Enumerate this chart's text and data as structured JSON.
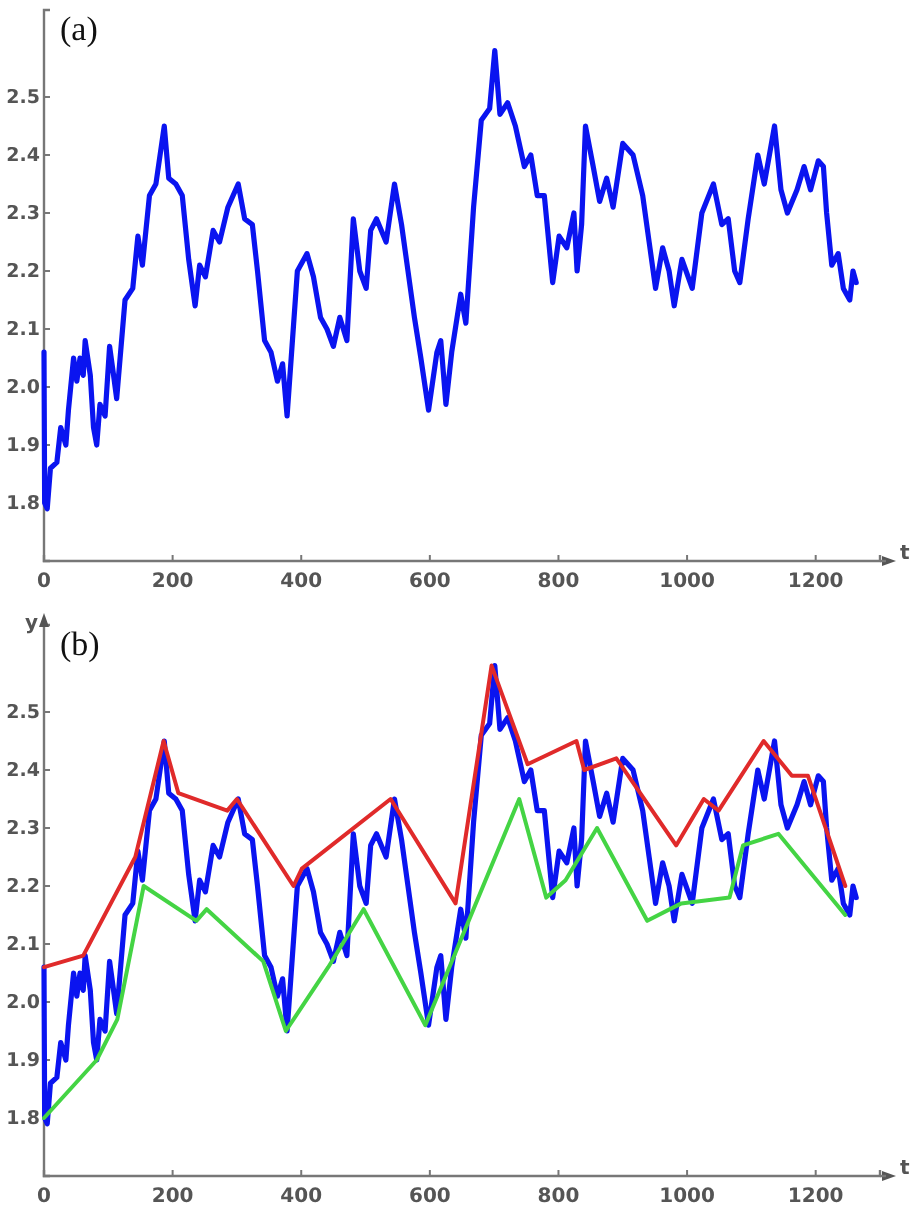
{
  "chart_data": [
    {
      "type": "line",
      "title": "(a)",
      "xlabel": "t",
      "xlim": [
        0,
        1300
      ],
      "ylim": [
        1.7,
        2.65
      ],
      "xticks": [
        0,
        200,
        400,
        600,
        800,
        1000,
        1200
      ],
      "yticks": [
        1.8,
        1.9,
        {
          "value": 2.0,
          "label": "2.0"
        },
        2.1,
        2.2,
        2.3,
        2.4,
        2.5
      ],
      "grid": false,
      "x": [
        0,
        1,
        5,
        10,
        20,
        26,
        34,
        38,
        46,
        51,
        56,
        61,
        64,
        72,
        77,
        82,
        87,
        95,
        102,
        107,
        113,
        126,
        138,
        146,
        153,
        164,
        174,
        187,
        194,
        205,
        215,
        225,
        235,
        242,
        251,
        263,
        273,
        286,
        302,
        312,
        324,
        332,
        343,
        353,
        363,
        371,
        378,
        394,
        409,
        419,
        430,
        440,
        450,
        460,
        471,
        481,
        491,
        501,
        508,
        517,
        532,
        545,
        556,
        566,
        576,
        586,
        598,
        611,
        617,
        625,
        634,
        648,
        656,
        668,
        680,
        693,
        701,
        709,
        721,
        733,
        747,
        757,
        767,
        778,
        791,
        801,
        813,
        824,
        829,
        836,
        842,
        854,
        864,
        875,
        885,
        900,
        916,
        931,
        941,
        951,
        962,
        972,
        980,
        992,
        1008,
        1023,
        1041,
        1054,
        1064,
        1074,
        1082,
        1095,
        1110,
        1120,
        1136,
        1146,
        1156,
        1171,
        1182,
        1192,
        1204,
        1212,
        1217,
        1225,
        1235,
        1243,
        1253,
        1258,
        1263
      ],
      "series": [
        {
          "color": "#0a14f0",
          "values": [
            2.06,
            1.8,
            1.79,
            1.86,
            1.87,
            1.93,
            1.9,
            1.96,
            2.05,
            2.01,
            2.05,
            2.02,
            2.08,
            2.02,
            1.93,
            1.9,
            1.97,
            1.95,
            2.07,
            2.03,
            1.98,
            2.15,
            2.17,
            2.26,
            2.21,
            2.33,
            2.35,
            2.45,
            2.36,
            2.35,
            2.33,
            2.22,
            2.14,
            2.21,
            2.19,
            2.27,
            2.25,
            2.31,
            2.35,
            2.29,
            2.28,
            2.2,
            2.08,
            2.06,
            2.01,
            2.04,
            1.95,
            2.2,
            2.23,
            2.19,
            2.12,
            2.1,
            2.07,
            2.12,
            2.08,
            2.29,
            2.2,
            2.17,
            2.27,
            2.29,
            2.25,
            2.35,
            2.28,
            2.2,
            2.12,
            2.05,
            1.96,
            2.06,
            2.08,
            1.97,
            2.06,
            2.16,
            2.11,
            2.31,
            2.46,
            2.48,
            2.58,
            2.47,
            2.49,
            2.45,
            2.38,
            2.4,
            2.33,
            2.33,
            2.18,
            2.26,
            2.24,
            2.3,
            2.2,
            2.28,
            2.45,
            2.38,
            2.32,
            2.36,
            2.31,
            2.42,
            2.4,
            2.33,
            2.25,
            2.17,
            2.24,
            2.2,
            2.14,
            2.22,
            2.17,
            2.3,
            2.35,
            2.28,
            2.29,
            2.2,
            2.18,
            2.29,
            2.4,
            2.35,
            2.45,
            2.34,
            2.3,
            2.34,
            2.38,
            2.34,
            2.39,
            2.38,
            2.3,
            2.21,
            2.23,
            2.17,
            2.15,
            2.2,
            2.18
          ]
        }
      ]
    },
    {
      "type": "line",
      "title": "(b)",
      "xlabel": "t",
      "ylabel": "y",
      "xlim": [
        0,
        1300
      ],
      "ylim": [
        1.7,
        2.65
      ],
      "xticks": [
        0,
        200,
        400,
        600,
        800,
        1000,
        1200
      ],
      "yticks": [
        1.8,
        1.9,
        {
          "value": 2.0,
          "label": "2.0"
        },
        2.1,
        2.2,
        2.3,
        2.4,
        2.5
      ],
      "grid": false,
      "x": [
        0,
        1,
        5,
        10,
        20,
        26,
        34,
        38,
        46,
        51,
        56,
        61,
        64,
        72,
        77,
        82,
        87,
        95,
        102,
        107,
        113,
        126,
        138,
        146,
        153,
        164,
        174,
        187,
        194,
        205,
        215,
        225,
        235,
        242,
        251,
        263,
        273,
        286,
        302,
        312,
        324,
        332,
        343,
        353,
        363,
        371,
        378,
        394,
        409,
        419,
        430,
        440,
        450,
        460,
        471,
        481,
        491,
        501,
        508,
        517,
        532,
        545,
        556,
        566,
        576,
        586,
        598,
        611,
        617,
        625,
        634,
        648,
        656,
        668,
        680,
        693,
        701,
        709,
        721,
        733,
        747,
        757,
        767,
        778,
        791,
        801,
        813,
        824,
        829,
        836,
        842,
        854,
        864,
        875,
        885,
        900,
        916,
        931,
        941,
        951,
        962,
        972,
        980,
        992,
        1008,
        1023,
        1041,
        1054,
        1064,
        1074,
        1082,
        1095,
        1110,
        1120,
        1136,
        1146,
        1156,
        1171,
        1182,
        1192,
        1204,
        1212,
        1217,
        1225,
        1235,
        1243,
        1253,
        1258,
        1263
      ],
      "series": [
        {
          "color": "#0a14f0",
          "values": [
            2.06,
            1.8,
            1.79,
            1.86,
            1.87,
            1.93,
            1.9,
            1.96,
            2.05,
            2.01,
            2.05,
            2.02,
            2.08,
            2.02,
            1.93,
            1.9,
            1.97,
            1.95,
            2.07,
            2.03,
            1.98,
            2.15,
            2.17,
            2.26,
            2.21,
            2.33,
            2.35,
            2.45,
            2.36,
            2.35,
            2.33,
            2.22,
            2.14,
            2.21,
            2.19,
            2.27,
            2.25,
            2.31,
            2.35,
            2.29,
            2.28,
            2.2,
            2.08,
            2.06,
            2.01,
            2.04,
            1.95,
            2.2,
            2.23,
            2.19,
            2.12,
            2.1,
            2.07,
            2.12,
            2.08,
            2.29,
            2.2,
            2.17,
            2.27,
            2.29,
            2.25,
            2.35,
            2.28,
            2.2,
            2.12,
            2.05,
            1.96,
            2.06,
            2.08,
            1.97,
            2.06,
            2.16,
            2.11,
            2.31,
            2.46,
            2.48,
            2.58,
            2.47,
            2.49,
            2.45,
            2.38,
            2.4,
            2.33,
            2.33,
            2.18,
            2.26,
            2.24,
            2.3,
            2.2,
            2.28,
            2.45,
            2.38,
            2.32,
            2.36,
            2.31,
            2.42,
            2.4,
            2.33,
            2.25,
            2.17,
            2.24,
            2.2,
            2.14,
            2.22,
            2.17,
            2.3,
            2.35,
            2.28,
            2.29,
            2.2,
            2.18,
            2.29,
            2.4,
            2.35,
            2.45,
            2.34,
            2.3,
            2.34,
            2.38,
            2.34,
            2.39,
            2.38,
            2.3,
            2.21,
            2.23,
            2.17,
            2.15,
            2.2,
            2.18
          ]
        },
        {
          "color": "#e02a2a",
          "x": [
            0,
            61,
            142,
            186,
            209,
            285,
            300,
            388,
            401,
            539,
            640,
            696,
            752,
            828,
            840,
            890,
            983,
            1026,
            1049,
            1119,
            1163,
            1188,
            1246
          ],
          "values": [
            2.06,
            2.08,
            2.25,
            2.45,
            2.36,
            2.33,
            2.35,
            2.2,
            2.23,
            2.35,
            2.17,
            2.58,
            2.41,
            2.45,
            2.4,
            2.42,
            2.27,
            2.35,
            2.33,
            2.45,
            2.39,
            2.39,
            2.2
          ]
        },
        {
          "color": "#44d444",
          "x": [
            0,
            82,
            114,
            155,
            237,
            253,
            341,
            376,
            442,
            497,
            593,
            739,
            781,
            811,
            860,
            938,
            991,
            1066,
            1087,
            1142,
            1246
          ],
          "values": [
            1.8,
            1.9,
            1.97,
            2.2,
            2.14,
            2.16,
            2.07,
            1.95,
            2.06,
            2.16,
            1.96,
            2.35,
            2.18,
            2.21,
            2.3,
            2.14,
            2.17,
            2.18,
            2.27,
            2.29,
            2.15
          ]
        }
      ]
    }
  ]
}
